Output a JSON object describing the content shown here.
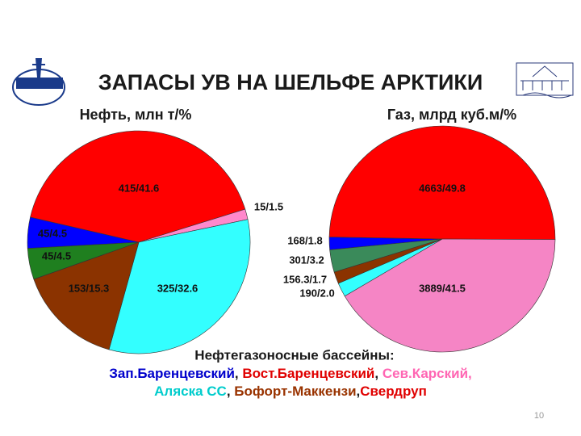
{
  "title": "ЗАПАСЫ УВ НА ШЕЛЬФЕ АРКТИКИ",
  "chart_data": [
    {
      "type": "pie",
      "title": "Нефть, млн т/%",
      "categories": [
        "Зап.Баренцевский",
        "Вост.Баренцевский",
        "Сев.Карский",
        "Аляска СС",
        "Бофорт-Маккензи",
        "Свердруп"
      ],
      "values": [
        4.5,
        41.6,
        1.5,
        32.6,
        15.3,
        4.5
      ],
      "value_labels": [
        "45/4.5",
        "415/41.6",
        "15/1.5",
        "325/32.6",
        "153/15.3",
        "45/4.5"
      ],
      "colors": [
        "#0000ff",
        "#ff0000",
        "#ff88cc",
        "#33ffff",
        "#8b3300",
        "#1f7f1f"
      ]
    },
    {
      "type": "pie",
      "title": "Газ, млрд куб.м/%",
      "categories": [
        "Зап.Баренцевский",
        "Вост.Баренцевский",
        "Сев.Карский",
        "Аляска СС",
        "Бофорт-Маккензи",
        "Свердруп"
      ],
      "values": [
        1.8,
        49.8,
        41.5,
        2.0,
        1.7,
        3.2
      ],
      "value_labels": [
        "168/1.8",
        "4663/49.8",
        "3889/41.5",
        "190/2.0",
        "156.3/1.7",
        "301/3.2"
      ],
      "colors": [
        "#0000ff",
        "#ff0000",
        "#f585c5",
        "#33ffff",
        "#8b3300",
        "#3a8a5a"
      ]
    }
  ],
  "legend": {
    "title": "Нефтегазоносные бассейны:",
    "colors": [
      "#0000cc",
      "#e00000",
      "#ff66b3",
      "#00cccc",
      "#993300",
      "#e00000"
    ],
    "separators": [
      ", ",
      ", ",
      ", ",
      ", ",
      ","
    ]
  },
  "page_number": "10"
}
